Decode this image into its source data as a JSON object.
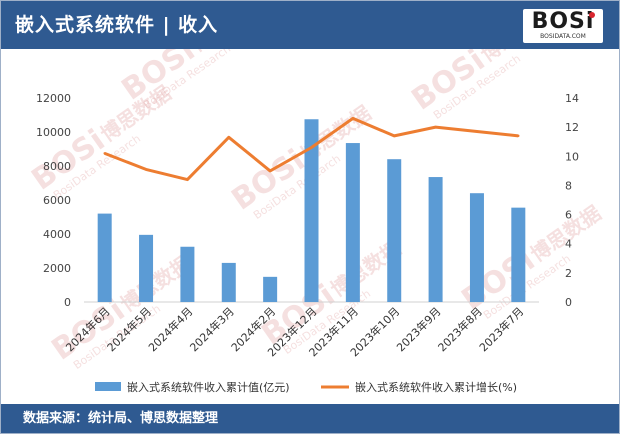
{
  "header": {
    "title": "嵌入式系统软件 | 收入",
    "logo_text": "BOSi",
    "logo_sub": "BOSIDATA.COM"
  },
  "watermark": {
    "brand": "BOSi",
    "cn": "博思数据",
    "en": "BosiData Research"
  },
  "footer": {
    "source": "数据来源：统计局、博思数据整理"
  },
  "colors": {
    "header_bg": "#2f5a91",
    "bar": "#5b9bd5",
    "line": "#ed7d31",
    "watermark": "#e3a9a9"
  },
  "chart_data": {
    "type": "bar+line",
    "categories": [
      "2024年6月",
      "2024年5月",
      "2024年4月",
      "2024年3月",
      "2024年2月",
      "2023年12月",
      "2023年11月",
      "2023年10月",
      "2023年9月",
      "2023年8月",
      "2023年7月"
    ],
    "series": [
      {
        "name": "嵌入式系统软件收入累计值(亿元)",
        "type": "bar",
        "axis": "left",
        "values": [
          5200,
          3950,
          3250,
          2300,
          1480,
          10750,
          9350,
          8400,
          7350,
          6400,
          5550
        ]
      },
      {
        "name": "嵌入式系统软件收入累计增长(%)",
        "type": "line",
        "axis": "right",
        "values": [
          10.2,
          9.1,
          8.4,
          11.3,
          9.0,
          10.6,
          12.6,
          11.4,
          12.0,
          11.7,
          11.4
        ]
      }
    ],
    "y_left": {
      "min": 0,
      "max": 12000,
      "ticks": [
        0,
        2000,
        4000,
        6000,
        8000,
        10000,
        12000
      ]
    },
    "y_right": {
      "min": 0,
      "max": 14,
      "ticks": [
        0,
        2,
        4,
        6,
        8,
        10,
        12,
        14
      ]
    },
    "grid": false,
    "legend_position": "bottom"
  }
}
